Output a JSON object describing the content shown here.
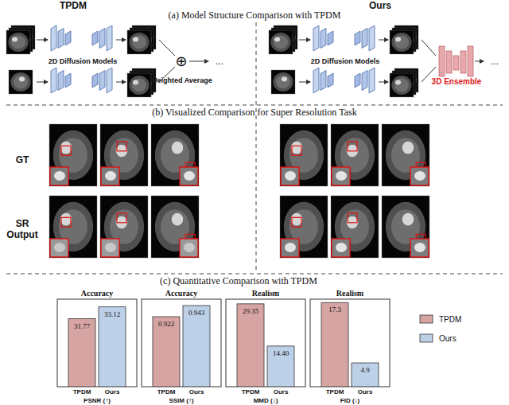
{
  "figure": {
    "panel_a": {
      "title": "(a) Model Structure Comparison with TPDM",
      "left_title": "TPDM",
      "right_title": "Ours",
      "model_label": "2D Diffusion Models",
      "left_op": "⊕",
      "left_merge": "Weighted Average",
      "right_merge": "3D Ensemble",
      "ellipsis": "..."
    },
    "panel_b": {
      "title": "(b) Visualized Comparison for Super Resolution Task",
      "rows": [
        "GT",
        "SR Output"
      ]
    },
    "panel_c": {
      "title": "(c) Quantitative Comparison with TPDM",
      "legend": [
        {
          "name": "TPDM",
          "color": "#d7a4a4"
        },
        {
          "name": "Ours",
          "color": "#bcd0e8"
        }
      ]
    }
  },
  "chart_data": [
    {
      "type": "bar",
      "title": "Accuracy",
      "x_label": "PSNR (↑)",
      "categories": [
        "TPDM",
        "Ours"
      ],
      "values": [
        31.77,
        33.12
      ],
      "colors": [
        "#d7a4a4",
        "#bcd0e8"
      ],
      "ylim": [
        24,
        34
      ],
      "data_labels": true,
      "tick_labels": "x"
    },
    {
      "type": "bar",
      "title": "Accuracy",
      "x_label": "SSIM (↑)",
      "categories": [
        "TPDM",
        "Ours"
      ],
      "values": [
        0.922,
        0.943
      ],
      "colors": [
        "#d7a4a4",
        "#bcd0e8"
      ],
      "ylim": [
        0.79,
        0.955
      ],
      "data_labels": true,
      "tick_labels": "x"
    },
    {
      "type": "bar",
      "title": "Realism",
      "x_label": "MMD (↓)",
      "categories": [
        "TPDM",
        "Ours"
      ],
      "values": [
        29.35,
        14.4
      ],
      "value_labels": [
        "29.35",
        "14.40"
      ],
      "colors": [
        "#d7a4a4",
        "#bcd0e8"
      ],
      "ylim": [
        0,
        31
      ],
      "data_labels": true,
      "tick_labels": "x"
    },
    {
      "type": "bar",
      "title": "Realism",
      "x_label": "FID (↓)",
      "categories": [
        "TPDM",
        "Ours"
      ],
      "values": [
        17.3,
        4.9
      ],
      "colors": [
        "#d7a4a4",
        "#bcd0e8"
      ],
      "ylim": [
        0,
        18
      ],
      "data_labels": true,
      "tick_labels": "x"
    }
  ]
}
